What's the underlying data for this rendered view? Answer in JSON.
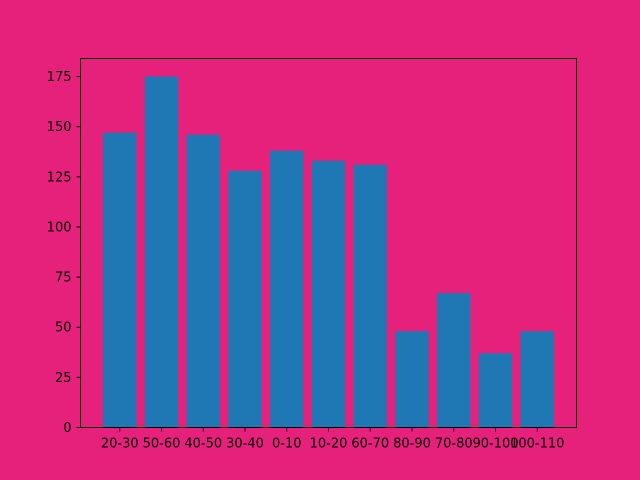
{
  "chart_data": {
    "type": "bar",
    "title": "",
    "xlabel": "",
    "ylabel": "",
    "categories": [
      "20-30",
      "50-60",
      "40-50",
      "30-40",
      "0-10",
      "10-20",
      "60-70",
      "80-90",
      "70-80",
      "90-100",
      "100-110"
    ],
    "values": [
      147,
      175,
      146,
      128,
      138,
      133,
      131,
      48,
      67,
      37,
      48
    ],
    "ylim": [
      0,
      184
    ],
    "yticks": [
      0,
      25,
      50,
      75,
      100,
      125,
      150,
      175
    ],
    "grid": false,
    "legend": "none",
    "colors": {
      "background": "#e5217c",
      "bar": "#1f77b4",
      "axis": "#000000"
    }
  }
}
